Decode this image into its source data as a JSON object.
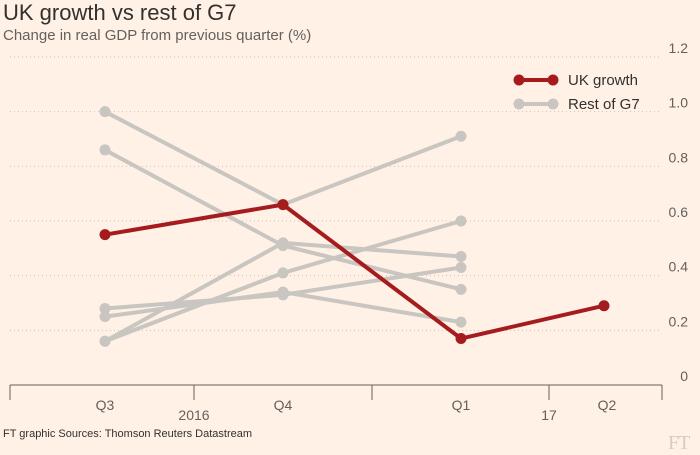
{
  "title": "UK growth vs rest of G7",
  "subtitle": "Change in real GDP from previous quarter (%)",
  "source": "FT graphic Sources: Thomson Reuters Datastream",
  "logo": "FT",
  "colors": {
    "background": "#fff1e5",
    "uk": "#a51c1f",
    "rest": "#c9c5c1",
    "grid": "#ccc1b7",
    "axis": "#66605c"
  },
  "chart_data": {
    "type": "line",
    "title": "UK growth vs rest of G7",
    "subtitle": "Change in real GDP from previous quarter (%)",
    "x_tick_labels": [
      "Q3",
      "Q4",
      "Q1",
      "Q2"
    ],
    "x_year_labels": [
      "2016",
      "17"
    ],
    "ylim": [
      0,
      1.2
    ],
    "y_ticks": [
      "0",
      "0.2",
      "0.4",
      "0.6",
      "0.8",
      "1.0",
      "1.2"
    ],
    "y_axis_position": "right",
    "grid": "horizontal-dotted",
    "legend": {
      "placement": "top-right",
      "entries": [
        "UK growth",
        "Rest of G7"
      ]
    },
    "series": [
      {
        "name": "Rest of G7",
        "group": "rest",
        "x": [
          "Q3",
          "Q4",
          "Q1"
        ],
        "values": [
          1.0,
          0.66,
          0.91
        ]
      },
      {
        "group": "rest",
        "x": [
          "Q3",
          "Q4",
          "Q1"
        ],
        "values": [
          0.86,
          0.51,
          0.35
        ]
      },
      {
        "group": "rest",
        "x": [
          "Q3",
          "Q4",
          "Q1"
        ],
        "values": [
          0.28,
          0.33,
          0.43
        ]
      },
      {
        "group": "rest",
        "x": [
          "Q3",
          "Q4",
          "Q1"
        ],
        "values": [
          0.25,
          0.34,
          0.23
        ]
      },
      {
        "group": "rest",
        "x": [
          "Q3",
          "Q4",
          "Q1"
        ],
        "values": [
          0.16,
          0.41,
          0.6
        ]
      },
      {
        "group": "rest",
        "x": [
          "Q3",
          "Q4",
          "Q1"
        ],
        "values": [
          0.16,
          0.52,
          0.47
        ]
      },
      {
        "name": "UK growth",
        "group": "uk",
        "x": [
          "Q3",
          "Q4",
          "Q1",
          "Q2"
        ],
        "values": [
          0.55,
          0.66,
          0.17,
          0.29
        ]
      }
    ]
  }
}
